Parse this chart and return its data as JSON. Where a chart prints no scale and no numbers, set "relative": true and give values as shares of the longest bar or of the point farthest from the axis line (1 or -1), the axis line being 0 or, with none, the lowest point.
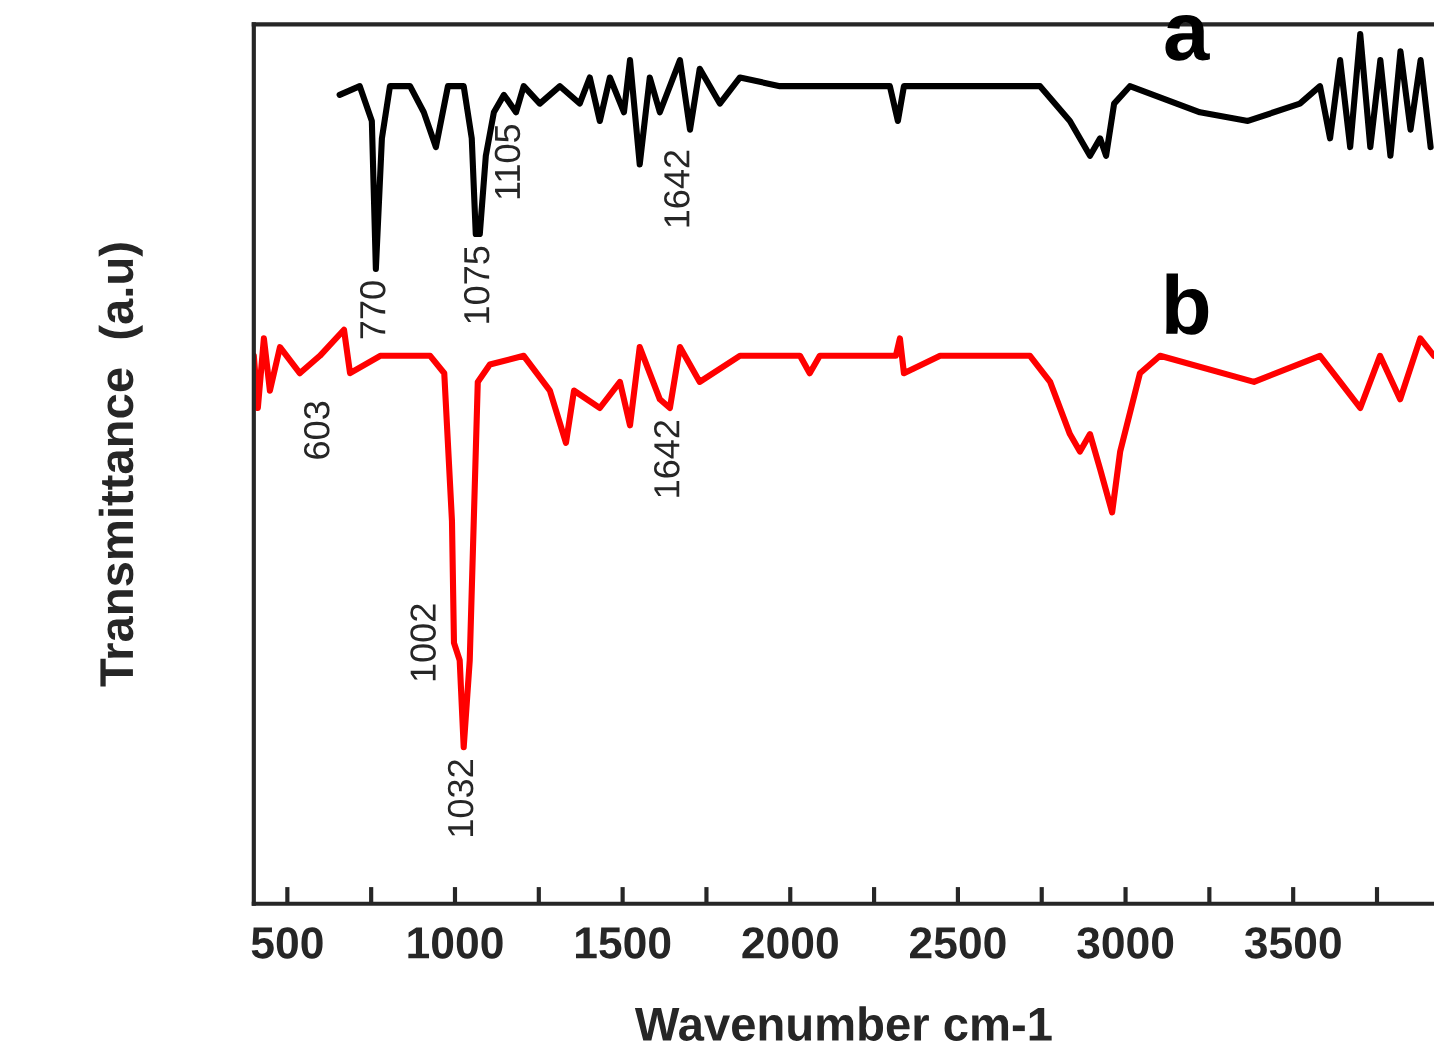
{
  "chart_data": {
    "type": "line",
    "relative": true,
    "xlabel": "Wavenumber cm-1",
    "ylabel": "Transmittance  (a.u)",
    "xlim": [
      400,
      3920
    ],
    "xticks": [
      500,
      {
        "value": 750,
        "label": null
      },
      1000,
      {
        "value": 1250,
        "label": null
      },
      1500,
      {
        "value": 1750,
        "label": null
      },
      2000,
      {
        "value": 2250,
        "label": null
      },
      2500,
      {
        "value": 2750,
        "label": null
      },
      3000,
      {
        "value": 3250,
        "label": null
      },
      3500,
      {
        "value": 3750,
        "label": null
      }
    ],
    "grid": false,
    "legend": false,
    "marker": "none",
    "line_style": "solid",
    "series": [
      {
        "name": "a",
        "color": "#000000",
        "x": [
          656,
          716,
          752,
          764,
          782,
          806,
          866,
          907,
          943,
          979,
          1026,
          1050,
          1062,
          1074,
          1092,
          1116,
          1146,
          1182,
          1205,
          1253,
          1313,
          1372,
          1402,
          1432,
          1462,
          1504,
          1522,
          1551,
          1581,
          1611,
          1671,
          1701,
          1730,
          1790,
          1850,
          1969,
          2148,
          2297,
          2321,
          2339,
          2626,
          2745,
          2834,
          2894,
          2924,
          2942,
          2966,
          3013,
          3222,
          3365,
          3520,
          3580,
          3610,
          3640,
          3670,
          3700,
          3730,
          3760,
          3790,
          3820,
          3850,
          3880,
          3910
        ],
        "values": [
          0.93,
          0.94,
          0.9,
          0.73,
          0.88,
          0.94,
          0.94,
          0.91,
          0.87,
          0.94,
          0.94,
          0.88,
          0.77,
          0.77,
          0.86,
          0.91,
          0.93,
          0.91,
          0.94,
          0.92,
          0.94,
          0.92,
          0.95,
          0.9,
          0.95,
          0.91,
          0.97,
          0.85,
          0.95,
          0.91,
          0.97,
          0.89,
          0.96,
          0.92,
          0.95,
          0.94,
          0.94,
          0.94,
          0.9,
          0.94,
          0.94,
          0.94,
          0.9,
          0.86,
          0.88,
          0.86,
          0.92,
          0.94,
          0.91,
          0.9,
          0.92,
          0.94,
          0.88,
          0.97,
          0.87,
          1.0,
          0.87,
          0.97,
          0.86,
          0.98,
          0.89,
          0.97,
          0.87
        ]
      },
      {
        "name": "b",
        "color": "#ff0000",
        "x": [
          400,
          412,
          430,
          448,
          478,
          537,
          597,
          669,
          687,
          777,
          926,
          968,
          991,
          997,
          1014,
          1026,
          1044,
          1056,
          1068,
          1104,
          1205,
          1283,
          1331,
          1355,
          1432,
          1492,
          1522,
          1551,
          1611,
          1641,
          1671,
          1730,
          1850,
          2029,
          2058,
          2088,
          2315,
          2327,
          2339,
          2447,
          2715,
          2775,
          2834,
          2864,
          2894,
          2924,
          2960,
          2984,
          3043,
          3103,
          3383,
          3580,
          3640,
          3700,
          3759,
          3819,
          3879,
          3920
        ],
        "values": [
          0.63,
          0.57,
          0.65,
          0.59,
          0.64,
          0.61,
          0.63,
          0.66,
          0.61,
          0.63,
          0.63,
          0.61,
          0.44,
          0.3,
          0.28,
          0.18,
          0.28,
          0.44,
          0.6,
          0.62,
          0.63,
          0.59,
          0.53,
          0.59,
          0.57,
          0.6,
          0.55,
          0.64,
          0.58,
          0.57,
          0.64,
          0.6,
          0.63,
          0.63,
          0.61,
          0.63,
          0.63,
          0.65,
          0.61,
          0.63,
          0.63,
          0.6,
          0.54,
          0.52,
          0.54,
          0.5,
          0.45,
          0.52,
          0.61,
          0.63,
          0.6,
          0.63,
          0.6,
          0.57,
          0.63,
          0.58,
          0.65,
          0.63
        ]
      }
    ],
    "annotations": [
      {
        "text": "770",
        "x": 764,
        "y": 0.73
      },
      {
        "text": "1075",
        "x": 1074,
        "y": 0.77
      },
      {
        "text": "1105",
        "x": 1116,
        "y": 0.91
      },
      {
        "text": "1642",
        "x": 1671,
        "y": 0.97
      },
      {
        "text": "603",
        "x": 597,
        "y": 0.63
      },
      {
        "text": "1002",
        "x": 997,
        "y": 0.3
      },
      {
        "text": "1032",
        "x": 1026,
        "y": 0.18
      },
      {
        "text": "1642",
        "x": 1641,
        "y": 0.57
      }
    ]
  }
}
